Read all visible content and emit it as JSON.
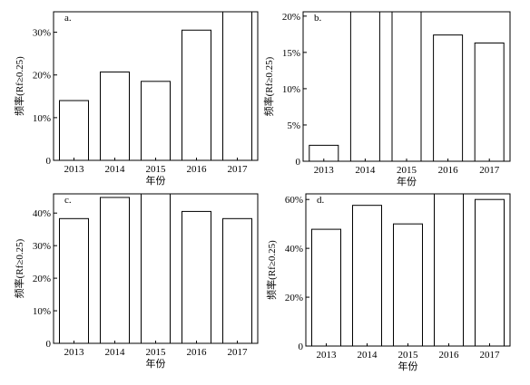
{
  "chart_data": [
    {
      "type": "bar",
      "panel_label": "a.",
      "categories": [
        "2013",
        "2014",
        "2015",
        "2016",
        "2017"
      ],
      "values": [
        14,
        20.7,
        18.5,
        30.5,
        34.8
      ],
      "ylim": [
        0,
        34.8
      ],
      "yticks": [
        0,
        10,
        20,
        30
      ],
      "ytick_labels": [
        "0",
        "10%",
        "20%",
        "30%"
      ],
      "xlabel": "年份",
      "ylabel": "频率(Rf≥0.25)",
      "grid": false
    },
    {
      "type": "bar",
      "panel_label": "b.",
      "categories": [
        "2013",
        "2014",
        "2015",
        "2016",
        "2017"
      ],
      "values": [
        2.2,
        20.6,
        20.6,
        17.4,
        16.3
      ],
      "ylim": [
        0,
        20.6
      ],
      "yticks": [
        0,
        5,
        10,
        15,
        20
      ],
      "ytick_labels": [
        "0",
        "5%",
        "10%",
        "15%",
        "20%"
      ],
      "xlabel": "年份",
      "ylabel": "频率(Rf≥0.25)",
      "grid": false
    },
    {
      "type": "bar",
      "panel_label": "c.",
      "categories": [
        "2013",
        "2014",
        "2015",
        "2016",
        "2017"
      ],
      "values": [
        38.3,
        44.8,
        45.9,
        40.5,
        38.3
      ],
      "ylim": [
        0,
        45.9
      ],
      "yticks": [
        0,
        10,
        20,
        30,
        40
      ],
      "ytick_labels": [
        "0",
        "10%",
        "20%",
        "30%",
        "40%"
      ],
      "xlabel": "年份",
      "ylabel": "频率(Rf≥0.25)",
      "grid": false
    },
    {
      "type": "bar",
      "panel_label": "d.",
      "categories": [
        "2013",
        "2014",
        "2015",
        "2016",
        "2017"
      ],
      "values": [
        47.8,
        57.6,
        50,
        62.3,
        60
      ],
      "ylim": [
        0,
        62.3
      ],
      "yticks": [
        0,
        20,
        40,
        60
      ],
      "ytick_labels": [
        "0",
        "20%",
        "40%",
        "60%"
      ],
      "xlabel": "年份",
      "ylabel": "频率(Rf≥0.25)",
      "grid": false
    }
  ]
}
